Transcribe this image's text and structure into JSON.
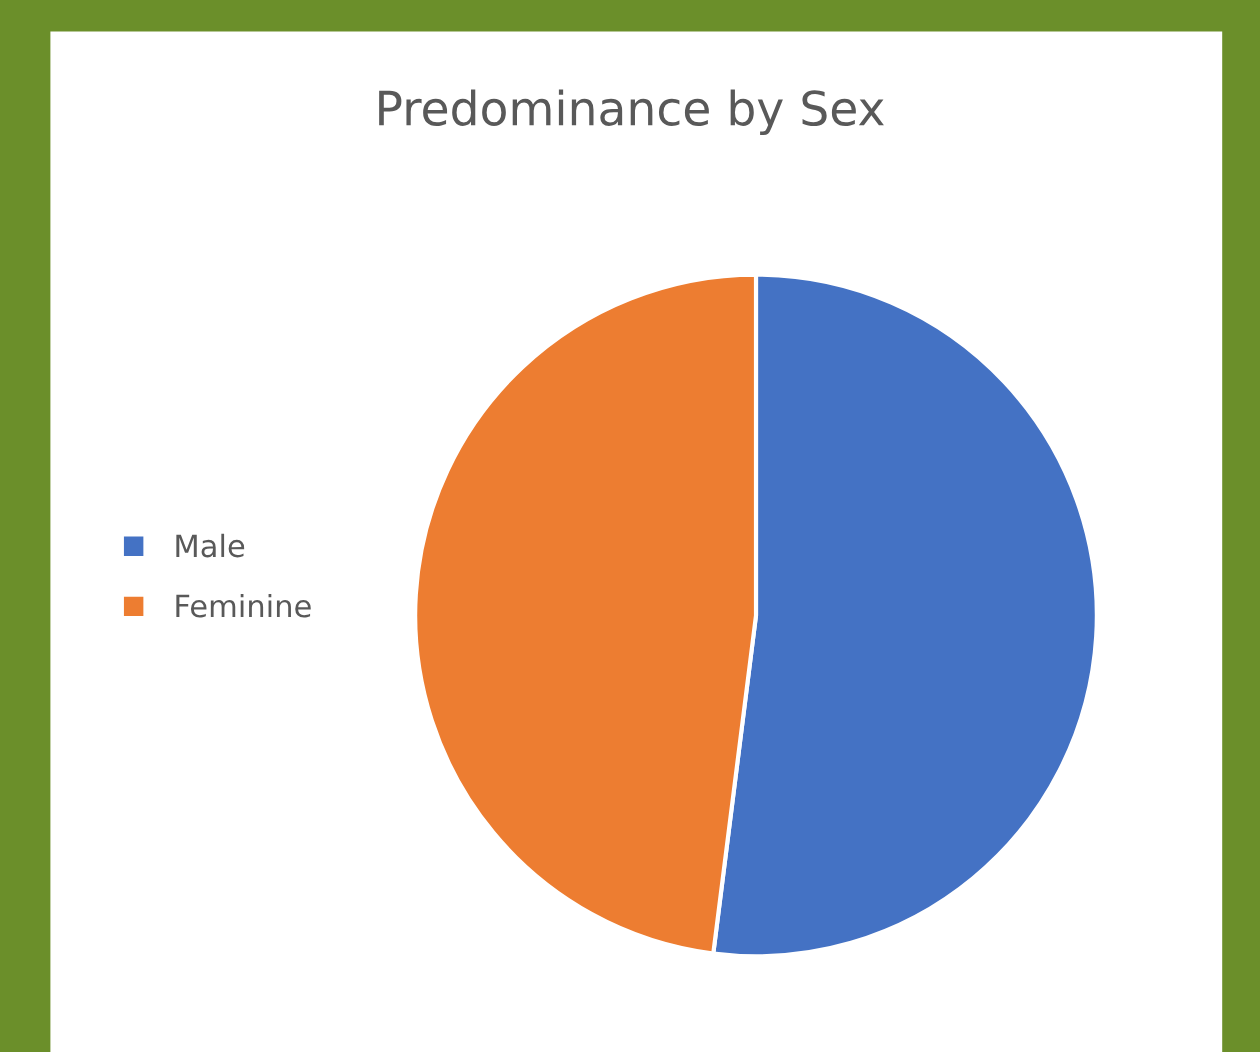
{
  "chart_data": {
    "type": "pie",
    "title": "Predominance by Sex",
    "categories": [
      "Male",
      "Feminine"
    ],
    "values": [
      52,
      48
    ],
    "colors": [
      "#4472c4",
      "#ed7d31"
    ],
    "legend": "left"
  }
}
